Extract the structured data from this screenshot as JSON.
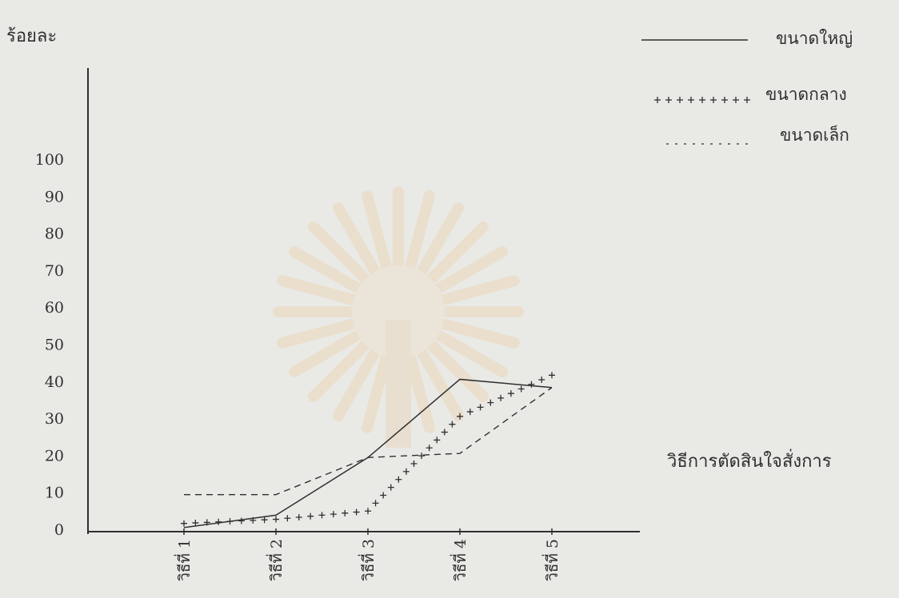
{
  "chart_data": {
    "type": "line",
    "ylabel": "ร้อยละ",
    "xlabel": "วิธีการตัดสินใจสั่งการ",
    "categories": [
      "วิธีที่ 1",
      "วิธีที่ 2",
      "วิธีที่ 3",
      "วิธีที่ 4",
      "วิธีที่ 5"
    ],
    "yticks": [
      0,
      10,
      20,
      30,
      40,
      50,
      60,
      70,
      80,
      90,
      100
    ],
    "ylim": [
      0,
      100
    ],
    "grid": false,
    "legend_position": "top-right",
    "series": [
      {
        "name": "ขนาดใหญ่",
        "style": "solid",
        "values": [
          3,
          6,
          20,
          39,
          37
        ]
      },
      {
        "name": "ขนาดกลาง",
        "style": "plus",
        "values": [
          4,
          5,
          7,
          30,
          40
        ]
      },
      {
        "name": "ขนาดเล็ก",
        "style": "dashed",
        "values": [
          11,
          11,
          20,
          21,
          37
        ]
      }
    ]
  },
  "colors": {
    "ink": "#2f2f2f",
    "paper": "#e9e9e6"
  }
}
